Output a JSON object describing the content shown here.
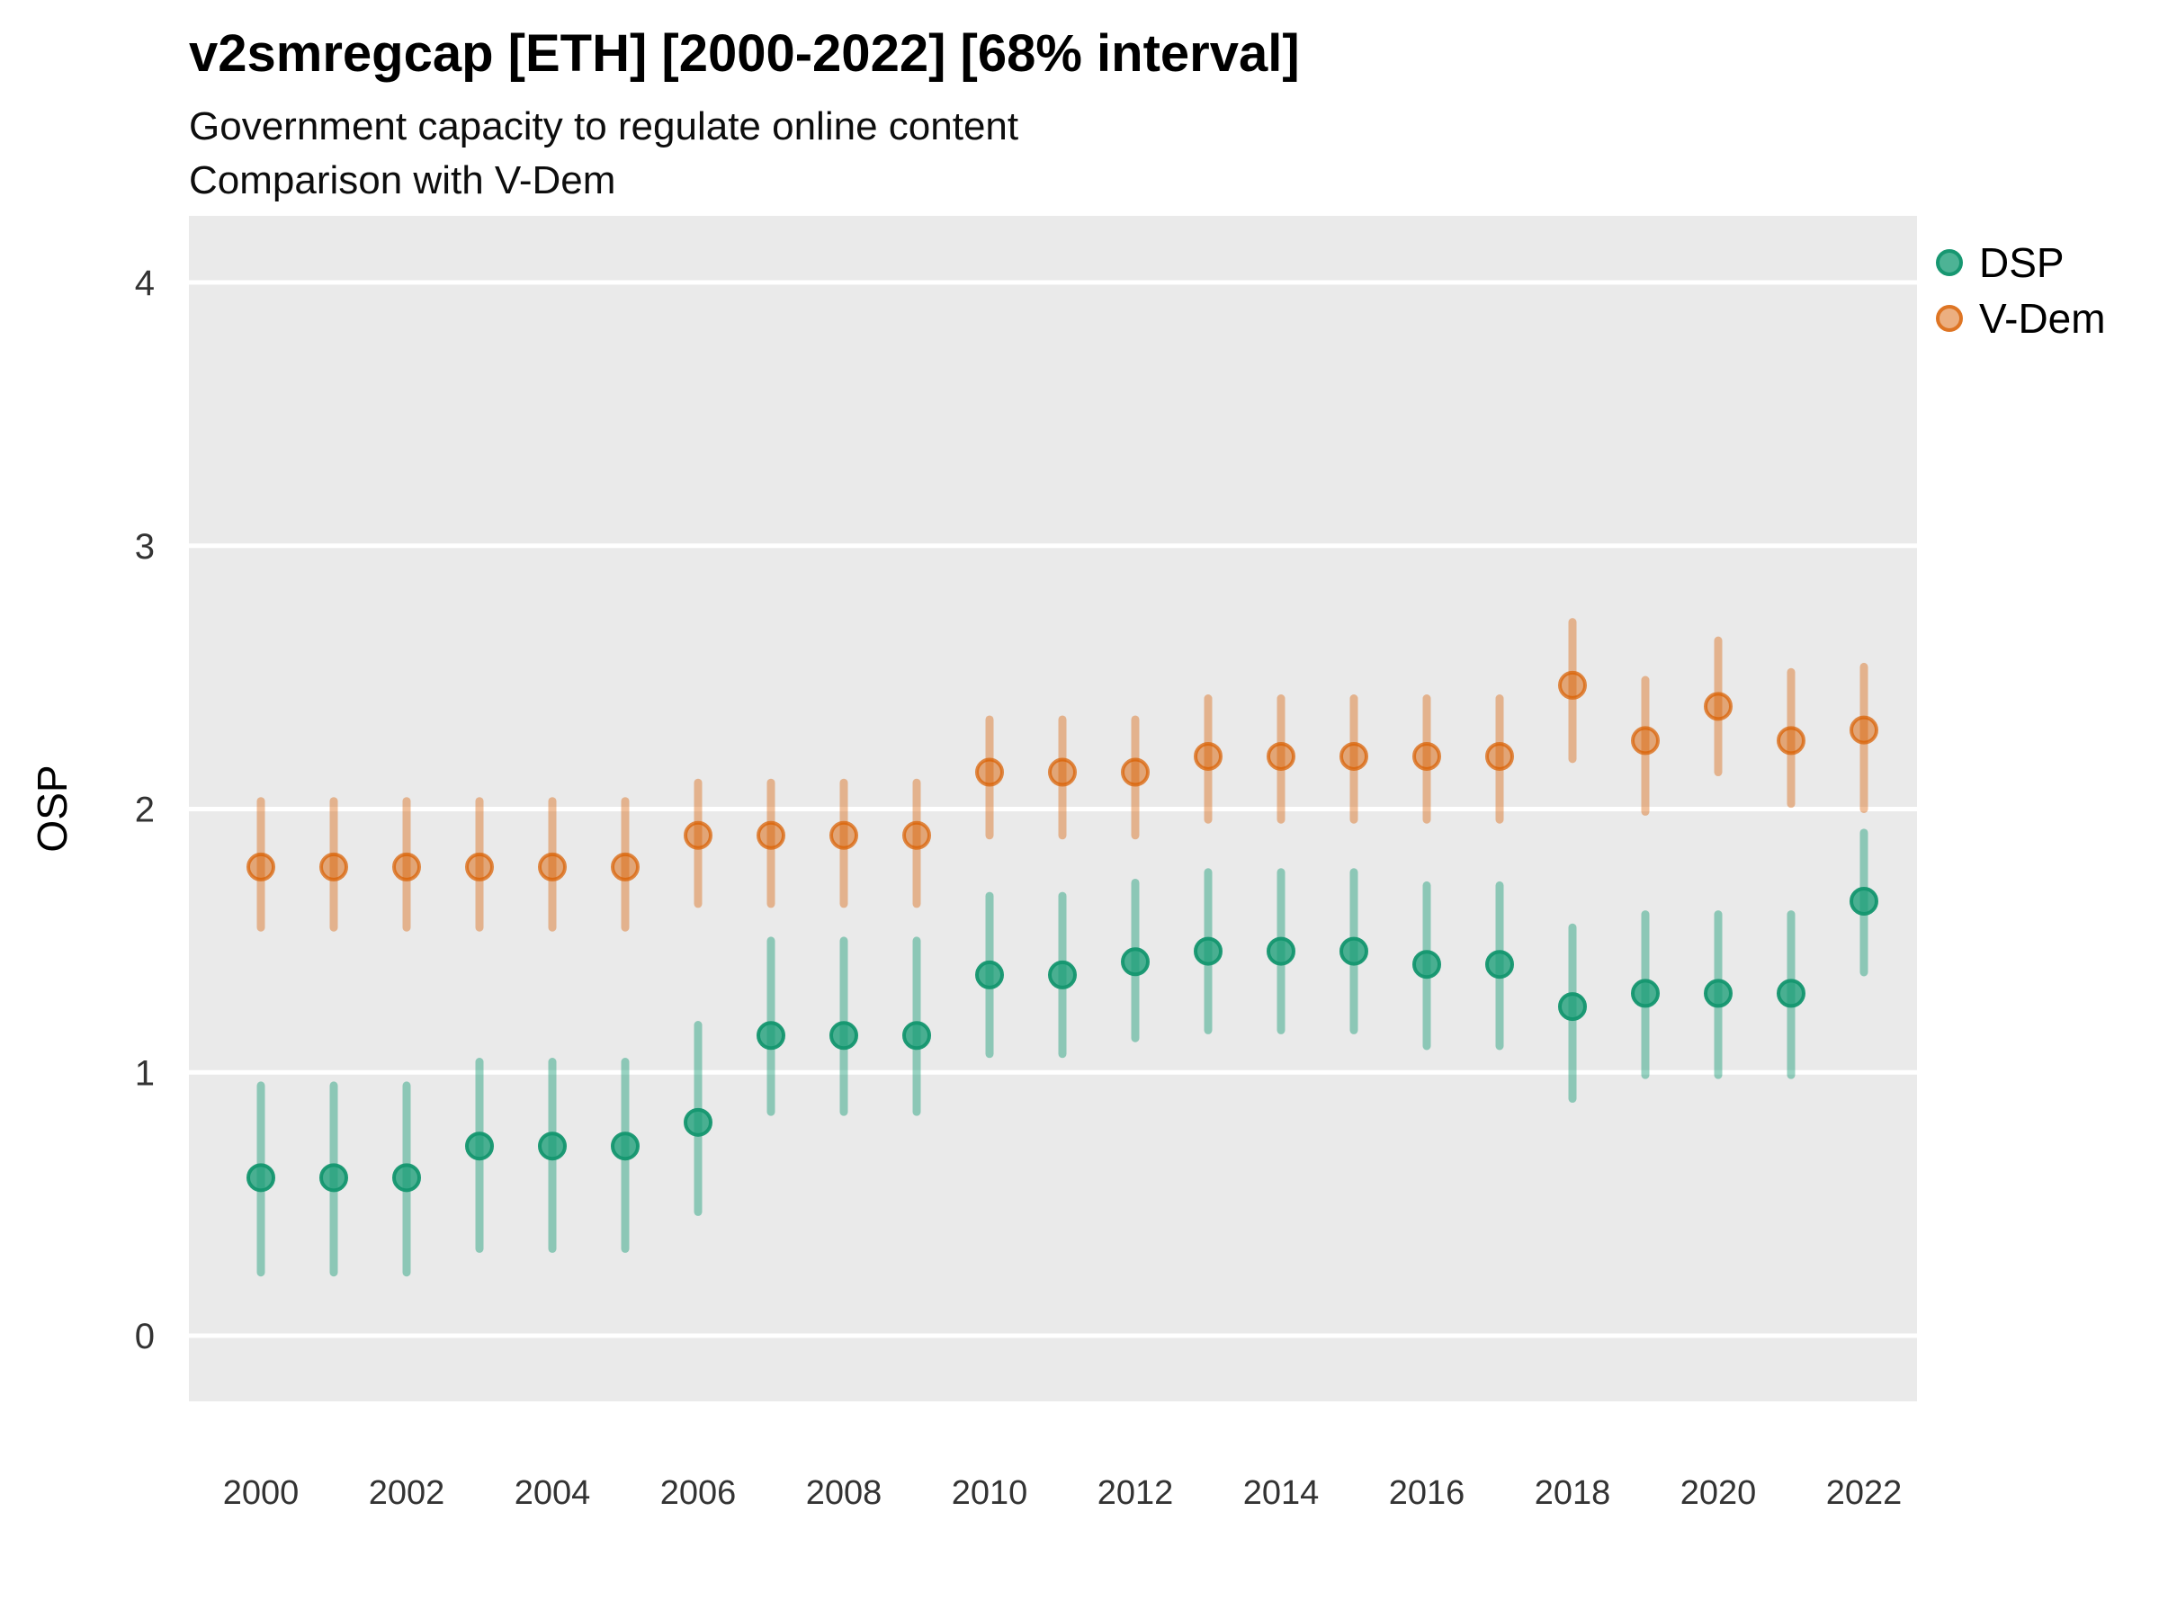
{
  "header": {
    "title": "v2smregcap [ETH] [2000-2022] [68% interval]",
    "subtitle1": "Government capacity to regulate online content",
    "subtitle2": "Comparison with V-Dem"
  },
  "chart_data": {
    "type": "pointrange",
    "title": "v2smregcap [ETH] [2000-2022] [68% interval]",
    "subtitle": [
      "Government capacity to regulate online content",
      "Comparison with V-Dem"
    ],
    "xlabel": "",
    "ylabel": "OSP",
    "x_ticks": [
      2000,
      2002,
      2004,
      2006,
      2008,
      2010,
      2012,
      2014,
      2016,
      2018,
      2020,
      2022
    ],
    "y_ticks": [
      0,
      1,
      2,
      3,
      4
    ],
    "xlim": [
      1999,
      2023
    ],
    "ylim": [
      -0.25,
      4.25
    ],
    "grid": "major-horizontal-white-on-gray",
    "legend_position": "right",
    "interval_level": "68%",
    "panel_bg": "#EAEAEA",
    "gridline_color": "#FFFFFF",
    "tick_label_color": "#333333",
    "series": [
      {
        "name": "DSP",
        "color": "#1B9E77",
        "dot_fill": "rgba(27,158,119,0.78)",
        "dot_stroke": "rgba(20,150,111,0.95)",
        "bar_color": "rgba(27,158,119,0.45)",
        "points": [
          {
            "year": 2000,
            "y": 0.6,
            "lo": 0.24,
            "hi": 0.95
          },
          {
            "year": 2001,
            "y": 0.6,
            "lo": 0.24,
            "hi": 0.95
          },
          {
            "year": 2002,
            "y": 0.6,
            "lo": 0.24,
            "hi": 0.95
          },
          {
            "year": 2003,
            "y": 0.72,
            "lo": 0.33,
            "hi": 1.04
          },
          {
            "year": 2004,
            "y": 0.72,
            "lo": 0.33,
            "hi": 1.04
          },
          {
            "year": 2005,
            "y": 0.72,
            "lo": 0.33,
            "hi": 1.04
          },
          {
            "year": 2006,
            "y": 0.81,
            "lo": 0.47,
            "hi": 1.18
          },
          {
            "year": 2007,
            "y": 1.14,
            "lo": 0.85,
            "hi": 1.5
          },
          {
            "year": 2008,
            "y": 1.14,
            "lo": 0.85,
            "hi": 1.5
          },
          {
            "year": 2009,
            "y": 1.14,
            "lo": 0.85,
            "hi": 1.5
          },
          {
            "year": 2010,
            "y": 1.37,
            "lo": 1.07,
            "hi": 1.67
          },
          {
            "year": 2011,
            "y": 1.37,
            "lo": 1.07,
            "hi": 1.67
          },
          {
            "year": 2012,
            "y": 1.42,
            "lo": 1.13,
            "hi": 1.72
          },
          {
            "year": 2013,
            "y": 1.46,
            "lo": 1.16,
            "hi": 1.76
          },
          {
            "year": 2014,
            "y": 1.46,
            "lo": 1.16,
            "hi": 1.76
          },
          {
            "year": 2015,
            "y": 1.46,
            "lo": 1.16,
            "hi": 1.76
          },
          {
            "year": 2016,
            "y": 1.41,
            "lo": 1.1,
            "hi": 1.71
          },
          {
            "year": 2017,
            "y": 1.41,
            "lo": 1.1,
            "hi": 1.71
          },
          {
            "year": 2018,
            "y": 1.25,
            "lo": 0.9,
            "hi": 1.55
          },
          {
            "year": 2019,
            "y": 1.3,
            "lo": 0.99,
            "hi": 1.6
          },
          {
            "year": 2020,
            "y": 1.3,
            "lo": 0.99,
            "hi": 1.6
          },
          {
            "year": 2021,
            "y": 1.3,
            "lo": 0.99,
            "hi": 1.6
          },
          {
            "year": 2022,
            "y": 1.65,
            "lo": 1.38,
            "hi": 1.91
          }
        ]
      },
      {
        "name": "V-Dem",
        "color": "#D95F02",
        "dot_fill": "rgba(217,95,2,0.50)",
        "dot_stroke": "rgba(217,95,2,0.72)",
        "bar_color": "rgba(217,95,2,0.40)",
        "points": [
          {
            "year": 2000,
            "y": 1.78,
            "lo": 1.55,
            "hi": 2.03
          },
          {
            "year": 2001,
            "y": 1.78,
            "lo": 1.55,
            "hi": 2.03
          },
          {
            "year": 2002,
            "y": 1.78,
            "lo": 1.55,
            "hi": 2.03
          },
          {
            "year": 2003,
            "y": 1.78,
            "lo": 1.55,
            "hi": 2.03
          },
          {
            "year": 2004,
            "y": 1.78,
            "lo": 1.55,
            "hi": 2.03
          },
          {
            "year": 2005,
            "y": 1.78,
            "lo": 1.55,
            "hi": 2.03
          },
          {
            "year": 2006,
            "y": 1.9,
            "lo": 1.64,
            "hi": 2.1
          },
          {
            "year": 2007,
            "y": 1.9,
            "lo": 1.64,
            "hi": 2.1
          },
          {
            "year": 2008,
            "y": 1.9,
            "lo": 1.64,
            "hi": 2.1
          },
          {
            "year": 2009,
            "y": 1.9,
            "lo": 1.64,
            "hi": 2.1
          },
          {
            "year": 2010,
            "y": 2.14,
            "lo": 1.9,
            "hi": 2.34
          },
          {
            "year": 2011,
            "y": 2.14,
            "lo": 1.9,
            "hi": 2.34
          },
          {
            "year": 2012,
            "y": 2.14,
            "lo": 1.9,
            "hi": 2.34
          },
          {
            "year": 2013,
            "y": 2.2,
            "lo": 1.96,
            "hi": 2.42
          },
          {
            "year": 2014,
            "y": 2.2,
            "lo": 1.96,
            "hi": 2.42
          },
          {
            "year": 2015,
            "y": 2.2,
            "lo": 1.96,
            "hi": 2.42
          },
          {
            "year": 2016,
            "y": 2.2,
            "lo": 1.96,
            "hi": 2.42
          },
          {
            "year": 2017,
            "y": 2.2,
            "lo": 1.96,
            "hi": 2.42
          },
          {
            "year": 2018,
            "y": 2.47,
            "lo": 2.19,
            "hi": 2.71
          },
          {
            "year": 2019,
            "y": 2.26,
            "lo": 1.99,
            "hi": 2.49
          },
          {
            "year": 2020,
            "y": 2.39,
            "lo": 2.14,
            "hi": 2.64
          },
          {
            "year": 2021,
            "y": 2.26,
            "lo": 2.02,
            "hi": 2.52
          },
          {
            "year": 2022,
            "y": 2.3,
            "lo": 2.0,
            "hi": 2.54
          }
        ]
      }
    ]
  },
  "legend": {
    "items": [
      {
        "label": "DSP"
      },
      {
        "label": "V-Dem"
      }
    ]
  }
}
